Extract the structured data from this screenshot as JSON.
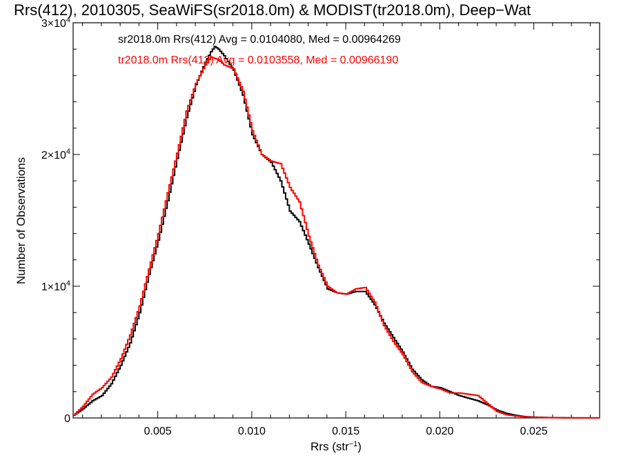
{
  "chart_data": {
    "type": "line",
    "title": "Rrs(412), 2010305, SeaWiFS(sr2018.0m) & MODIST(tr2018.0m), Deep−Wat",
    "xlabel": "Rrs (str",
    "xlabel_sup": "−1",
    "xlabel_end": ")",
    "ylabel": "Number of Observations",
    "xlim": [
      0.0005,
      0.0285
    ],
    "ylim": [
      0,
      30000
    ],
    "grid": false,
    "legend_position": "top-left",
    "x_ticks": [
      {
        "value": 0.005,
        "label": "0.005"
      },
      {
        "value": 0.01,
        "label": "0.010"
      },
      {
        "value": 0.015,
        "label": "0.015"
      },
      {
        "value": 0.02,
        "label": "0.020"
      },
      {
        "value": 0.025,
        "label": "0.025"
      }
    ],
    "y_ticks": [
      {
        "value": 0,
        "mant": "0",
        "exp": ""
      },
      {
        "value": 10000,
        "mant": "1×10",
        "exp": "4"
      },
      {
        "value": 20000,
        "mant": "2×10",
        "exp": "4"
      },
      {
        "value": 30000,
        "mant": "3×10",
        "exp": "4"
      }
    ],
    "series": [
      {
        "legend_text": "sr2018.0m Rrs(412) Avg = 0.0104080, Med = 0.00964269",
        "color": "#000000",
        "x": [
          0.0005,
          0.001,
          0.0015,
          0.002,
          0.0025,
          0.003,
          0.0035,
          0.004,
          0.0045,
          0.005,
          0.0055,
          0.006,
          0.0065,
          0.007,
          0.0075,
          0.0078,
          0.008,
          0.0082,
          0.0085,
          0.009,
          0.0095,
          0.01,
          0.0105,
          0.011,
          0.0115,
          0.012,
          0.0125,
          0.013,
          0.0135,
          0.014,
          0.0145,
          0.015,
          0.0155,
          0.016,
          0.0165,
          0.017,
          0.0175,
          0.018,
          0.0185,
          0.019,
          0.0195,
          0.02,
          0.0205,
          0.021,
          0.0215,
          0.022,
          0.0225,
          0.023,
          0.0235,
          0.024,
          0.0245,
          0.025,
          0.026,
          0.027,
          0.0285
        ],
        "y": [
          200,
          700,
          1300,
          1700,
          2600,
          4000,
          5700,
          8000,
          10900,
          13500,
          16500,
          19700,
          22800,
          25300,
          27000,
          27800,
          28200,
          28000,
          27500,
          26400,
          24500,
          21500,
          20000,
          19400,
          18000,
          15700,
          14900,
          13200,
          11400,
          9800,
          9500,
          9400,
          9600,
          9600,
          8600,
          7200,
          6100,
          5000,
          3700,
          2900,
          2400,
          2300,
          2000,
          1700,
          1500,
          1300,
          1000,
          600,
          350,
          200,
          100,
          60,
          25,
          10,
          5
        ]
      },
      {
        "legend_text": "tr2018.0m Rrs(412) Avg = 0.0103558, Med = 0.00966190",
        "color": "#ff0000",
        "x": [
          0.0005,
          0.001,
          0.0015,
          0.002,
          0.0025,
          0.003,
          0.0035,
          0.004,
          0.0045,
          0.005,
          0.0055,
          0.006,
          0.0065,
          0.007,
          0.0075,
          0.0078,
          0.008,
          0.0082,
          0.0085,
          0.009,
          0.0095,
          0.01,
          0.0105,
          0.011,
          0.0115,
          0.012,
          0.0125,
          0.013,
          0.0135,
          0.014,
          0.0145,
          0.015,
          0.0155,
          0.016,
          0.0165,
          0.017,
          0.0175,
          0.018,
          0.0185,
          0.019,
          0.0195,
          0.02,
          0.0205,
          0.021,
          0.0215,
          0.022,
          0.0225,
          0.023,
          0.0235,
          0.024,
          0.0245,
          0.025,
          0.026,
          0.027,
          0.0285
        ],
        "y": [
          200,
          900,
          1800,
          2300,
          3100,
          4500,
          6300,
          8500,
          11300,
          14000,
          17100,
          20100,
          23300,
          25400,
          26800,
          27400,
          27300,
          27200,
          26800,
          26500,
          24800,
          21800,
          20000,
          19500,
          19300,
          17500,
          16400,
          13800,
          11600,
          10000,
          9500,
          9400,
          9800,
          9900,
          8800,
          7000,
          5800,
          4800,
          3500,
          2700,
          2400,
          2200,
          1900,
          1900,
          1800,
          1700,
          1100,
          500,
          250,
          150,
          80,
          40,
          20,
          10,
          5
        ]
      }
    ]
  }
}
